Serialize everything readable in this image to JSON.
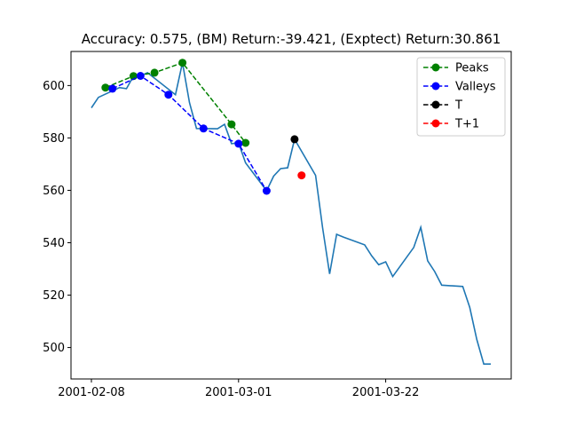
{
  "chart_data": {
    "type": "line",
    "title": "Accuracy: 0.575, (BM) Return:-39.421, (Exptect) Return:30.861",
    "xlabel": "",
    "ylabel": "",
    "x_tick_labels": [
      "2001-02-08",
      "2001-03-01",
      "2001-03-22"
    ],
    "y_ticks": [
      500,
      520,
      540,
      560,
      580,
      600
    ],
    "ylim": [
      488,
      613
    ],
    "grid": false,
    "legend_position": "top-right",
    "colors": {
      "price": "#1f77b4",
      "peaks": "#008000",
      "valleys": "#0000ff",
      "t": "#000000",
      "t1": "#ff0000"
    },
    "series": [
      {
        "role": "price",
        "x": [
          "2001-02-08",
          "2001-02-09",
          "2001-02-12",
          "2001-02-13",
          "2001-02-14",
          "2001-02-15",
          "2001-02-16",
          "2001-02-20",
          "2001-02-21",
          "2001-02-22",
          "2001-02-23",
          "2001-02-26",
          "2001-02-27",
          "2001-02-28",
          "2001-03-01",
          "2001-03-02",
          "2001-03-05",
          "2001-03-06",
          "2001-03-07",
          "2001-03-08",
          "2001-03-09",
          "2001-03-12",
          "2001-03-13",
          "2001-03-14",
          "2001-03-15",
          "2001-03-16",
          "2001-03-19",
          "2001-03-20",
          "2001-03-21",
          "2001-03-22",
          "2001-03-23",
          "2001-03-26",
          "2001-03-27",
          "2001-03-28",
          "2001-03-29",
          "2001-03-30",
          "2001-04-02",
          "2001-04-03",
          "2001-04-04",
          "2001-04-05",
          "2001-04-06"
        ],
        "y": [
          591.5,
          595.5,
          599.2,
          598.8,
          603.6,
          603.7,
          604.9,
          596.5,
          608.7,
          593.5,
          583.6,
          583.5,
          585.2,
          577.8,
          578.1,
          570.5,
          559.8,
          565.4,
          568.3,
          568.6,
          579.5,
          565.7,
          545.7,
          528.1,
          543.2,
          542.1,
          539.2,
          535.0,
          531.6,
          532.7,
          527.1,
          538.2,
          545.9,
          533.1,
          529.0,
          523.8,
          523.3,
          515.3,
          503.1,
          493.7,
          493.7
        ]
      },
      {
        "name": "Peaks",
        "x": [
          "2001-02-10",
          "2001-02-14",
          "2001-02-17",
          "2001-02-21",
          "2001-02-28",
          "2001-03-02"
        ],
        "y": [
          599.2,
          603.6,
          604.9,
          608.7,
          585.2,
          578.1
        ]
      },
      {
        "name": "Valleys",
        "x": [
          "2001-02-11",
          "2001-02-15",
          "2001-02-19",
          "2001-02-24",
          "2001-03-01",
          "2001-03-05"
        ],
        "y": [
          598.8,
          603.7,
          596.5,
          583.6,
          577.8,
          559.8
        ]
      },
      {
        "name": "T",
        "x": [
          "2001-03-09"
        ],
        "y": [
          579.5
        ]
      },
      {
        "name": "T+1",
        "x": [
          "2001-03-10"
        ],
        "y": [
          565.7
        ]
      }
    ]
  }
}
